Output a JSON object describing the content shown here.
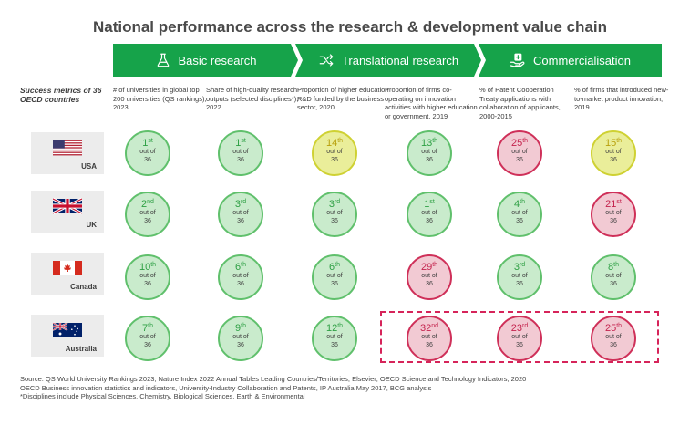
{
  "title": "National performance across the research & development value chain",
  "stages": [
    {
      "label": "Basic research",
      "icon": "flask-icon"
    },
    {
      "label": "Translational research",
      "icon": "shuffle-arrows-icon"
    },
    {
      "label": "Commercialisation",
      "icon": "hand-plus-icon"
    }
  ],
  "side_label": "Success metrics of 36 OECD countries",
  "colors": {
    "green": "#16a34a",
    "rank_green": "#c9ebcc",
    "rank_yellow": "#eaee9a",
    "rank_red": "#f2cad3",
    "highlight": "#d6245a"
  },
  "chart_data": {
    "type": "table",
    "title": "National performance across the research & development value chain",
    "total": 36,
    "out_of_text": "out of 36",
    "metrics": [
      "# of universities in global top 200 universities (QS rankings), 2023",
      "Share of high-quality research outputs (selected disciplines*), 2022",
      "Proportion of higher education R&D funded by the business sector, 2020",
      "Proportion of firms co-operating on innovation activities with higher education or government, 2019",
      "% of Patent Cooperation Treaty applications with collaboration of applicants, 2000-2015",
      "% of firms that introduced new-to-market product innovation, 2019"
    ],
    "countries": [
      {
        "name": "USA",
        "flag": "usa-flag",
        "ranks": [
          {
            "n": "1",
            "suffix": "st",
            "level": "green"
          },
          {
            "n": "1",
            "suffix": "st",
            "level": "green"
          },
          {
            "n": "14",
            "suffix": "th",
            "level": "yellow"
          },
          {
            "n": "13",
            "suffix": "th",
            "level": "green"
          },
          {
            "n": "25",
            "suffix": "th",
            "level": "red"
          },
          {
            "n": "15",
            "suffix": "th",
            "level": "yellow"
          }
        ]
      },
      {
        "name": "UK",
        "flag": "uk-flag",
        "ranks": [
          {
            "n": "2",
            "suffix": "nd",
            "level": "green"
          },
          {
            "n": "3",
            "suffix": "rd",
            "level": "green"
          },
          {
            "n": "3",
            "suffix": "rd",
            "level": "green"
          },
          {
            "n": "1",
            "suffix": "st",
            "level": "green"
          },
          {
            "n": "4",
            "suffix": "th",
            "level": "green"
          },
          {
            "n": "21",
            "suffix": "st",
            "level": "red"
          }
        ]
      },
      {
        "name": "Canada",
        "flag": "canada-flag",
        "ranks": [
          {
            "n": "10",
            "suffix": "th",
            "level": "green"
          },
          {
            "n": "6",
            "suffix": "th",
            "level": "green"
          },
          {
            "n": "6",
            "suffix": "th",
            "level": "green"
          },
          {
            "n": "29",
            "suffix": "th",
            "level": "red"
          },
          {
            "n": "3",
            "suffix": "rd",
            "level": "green"
          },
          {
            "n": "8",
            "suffix": "th",
            "level": "green"
          }
        ]
      },
      {
        "name": "Australia",
        "flag": "australia-flag",
        "ranks": [
          {
            "n": "7",
            "suffix": "th",
            "level": "green"
          },
          {
            "n": "9",
            "suffix": "th",
            "level": "green"
          },
          {
            "n": "12",
            "suffix": "th",
            "level": "green"
          },
          {
            "n": "32",
            "suffix": "nd",
            "level": "red"
          },
          {
            "n": "23",
            "suffix": "rd",
            "level": "red"
          },
          {
            "n": "25",
            "suffix": "th",
            "level": "red"
          }
        ]
      }
    ],
    "highlight": {
      "country": "Australia",
      "metrics": [
        4,
        5,
        6
      ]
    }
  },
  "source_lines": [
    "Source: QS World University Rankings 2023; Nature Index 2022 Annual Tables Leading Countries/Territories, Elsevier; OECD Science and Technology Indicators, 2020",
    "OECD Business innovation statistics and indicators, University-Industry Collaboration and Patents, IP Australia May 2017, BCG analysis",
    "*Disciplines include Physical Sciences, Chemistry, Biological Sciences, Earth & Environmental"
  ]
}
